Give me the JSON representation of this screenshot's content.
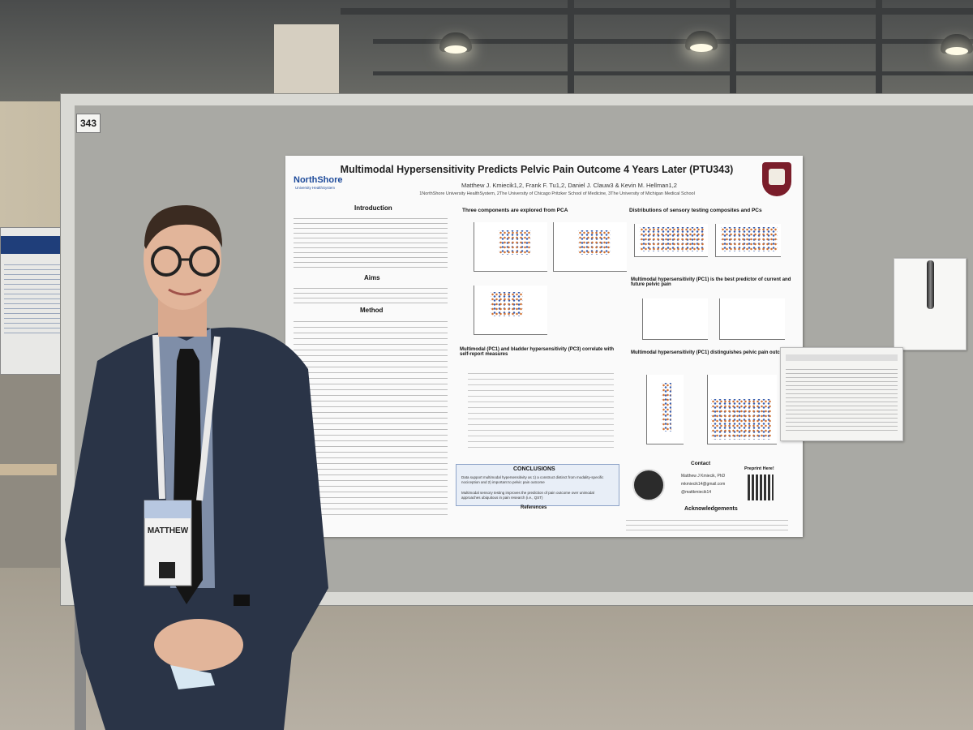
{
  "scene": {
    "board_number": "343",
    "poster": {
      "title": "Multimodal Hypersensitivity Predicts Pelvic Pain Outcome 4 Years Later (PTU343)",
      "authors": "Matthew J. Kmiecik1,2, Frank F. Tu1,2, Daniel J. Clauw3 & Kevin M. Hellman1,2",
      "affiliations": "1NorthShore University HealthSystem, 2The University of Chicago Pritzker School of Medicine, 3The University of Michigan Medical School",
      "logo_text": "NorthShore",
      "logo_subtext": "University HealthSystem",
      "sections": {
        "introduction": "Introduction",
        "aims": "Aims",
        "method": "Method",
        "pca": "Three components are explored from PCA",
        "distributions": "Distributions of sensory testing composites and PCs",
        "best_predictor": "Multimodal hypersensitivity (PC1) is the best predictor of current and future pelvic pain",
        "correlate": "Multimodal (PC1) and bladder hypersensitivity (PC3) correlate with self-report measures",
        "distinguishes": "Multimodal hypersensitivity (PC1) distinguishes pelvic pain outcome",
        "conclusions": "CONCLUSIONS",
        "contact": "Contact",
        "preprint": "Preprint Here!",
        "acknowledgements": "Acknowledgements",
        "references": "References"
      },
      "contact": {
        "name": "Matthew J Kmiecik, PhD",
        "email": "mkmiecik14@gmail.com",
        "handle": "@mattkmiecik14"
      },
      "conclusions": [
        "Data support multimodal hypersensitivity as 1) a construct distinct from modality-specific nociception and 2) important to pelvic pain outcome",
        "Multimodal sensory testing improves the prediction of pain outcome over unimodal approaches ubiquitous in pain research (i.e., QST)"
      ]
    },
    "badge": {
      "first_name": "MATTHEW"
    },
    "colors": {
      "board": "#a9a9a4",
      "poster_bg": "#fafafa",
      "crest": "#7a1d2a",
      "jacket": "#2a3447"
    }
  }
}
